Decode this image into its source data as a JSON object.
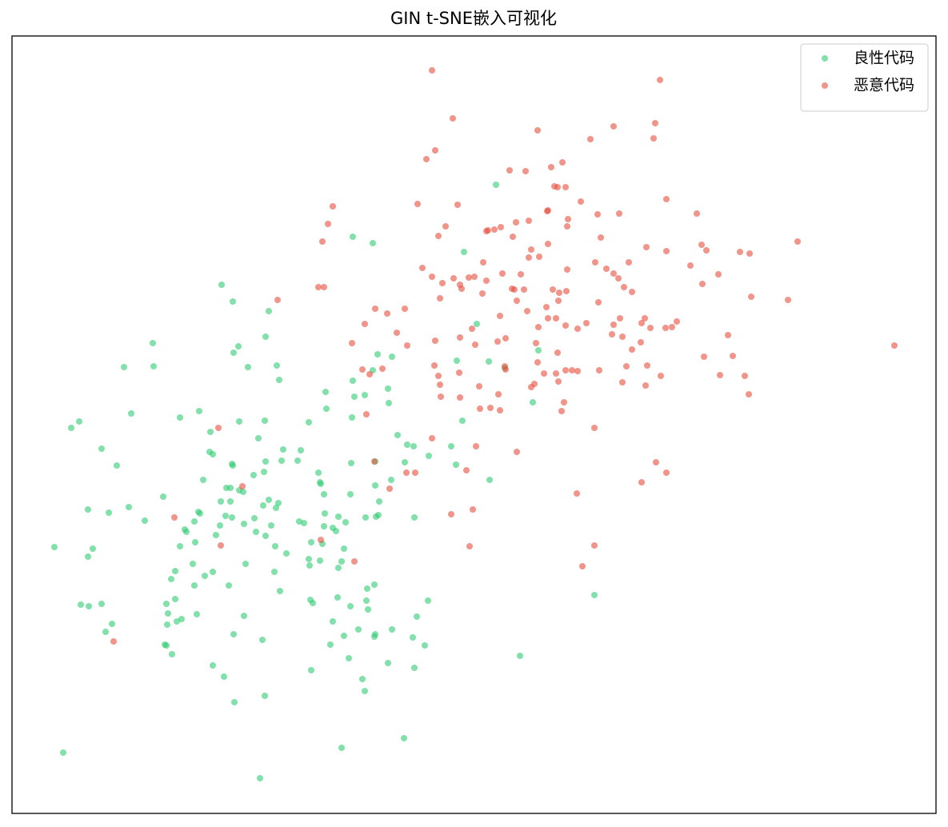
{
  "chart_data": {
    "type": "scatter",
    "title": "GIN t-SNE嵌入可视化",
    "xlim": [
      15,
      1170
    ],
    "ylim": [
      1017,
      45
    ],
    "legend": "upper right",
    "alpha": 0.6,
    "series": [
      {
        "name": "良性代码",
        "color": "#2ecc71",
        "x": [
          620,
          441,
          466,
          580,
          277,
          291,
          336,
          332,
          298,
          292,
          191,
          155,
          192,
          310,
          346,
          349,
          472,
          490,
          466,
          441,
          407,
          443,
          456,
          485,
          486,
          408,
          440,
          164,
          225,
          249,
          299,
          331,
          386,
          99,
          89,
          263,
          323,
          497,
          509,
          517,
          564,
          578,
          571,
          611,
          596,
          673,
          666,
          631,
          127,
          146,
          262,
          266,
          354,
          376,
          332,
          352,
          372,
          290,
          291,
          439,
          469,
          506,
          536,
          570,
          612,
          254,
          317,
          330,
          398,
          400,
          401,
          469,
          489,
          204,
          283,
          288,
          299,
          304,
          405,
          438,
          474,
          110,
          136,
          161,
          181,
          248,
          276,
          288,
          250,
          282,
          290,
          336,
          348,
          345,
          329,
          318,
          339,
          374,
          380,
          406,
          423,
          432,
          457,
          470,
          473,
          518,
          243,
          275,
          305,
          231,
          233,
          270,
          320,
          332,
          405,
          416,
          420,
          68,
          116,
          110,
          225,
          244,
          344,
          358,
          389,
          403,
          430,
          386,
          400,
          387,
          423,
          427,
          307,
          343,
          241,
          219,
          214,
          256,
          266,
          286,
          243,
          350,
          468,
          459,
          422,
          388,
          391,
          458,
          535,
          743,
          101,
          111,
          127,
          208,
          219,
          210,
          227,
          221,
          209,
          246,
          305,
          438,
          460,
          140,
          132,
          416,
          448,
          469,
          468,
          490,
          521,
          292,
          328,
          430,
          413,
          516,
          531,
          206,
          208,
          215,
          436,
          266,
          389,
          453,
          485,
          518,
          650,
          280,
          456,
          293,
          331,
          505,
          427,
          79,
          325
        ],
        "values": [
          231,
          296,
          304,
          315,
          356,
          377,
          389,
          421,
          433,
          441,
          429,
          459,
          458,
          459,
          457,
          475,
          443,
          446,
          463,
          476,
          490,
          496,
          494,
          486,
          504,
          511,
          522,
          517,
          522,
          514,
          527,
          526,
          528,
          527,
          535,
          540,
          548,
          544,
          556,
          558,
          558,
          526,
          451,
          452,
          405,
          438,
          503,
          460,
          561,
          582,
          565,
          568,
          562,
          563,
          577,
          576,
          576,
          580,
          582,
          579,
          577,
          578,
          570,
          581,
          600,
          600,
          594,
          590,
          591,
          603,
          605,
          607,
          600,
          621,
          610,
          610,
          613,
          615,
          618,
          618,
          627,
          637,
          641,
          634,
          651,
          640,
          627,
          627,
          642,
          645,
          647,
          625,
          629,
          635,
          632,
          648,
          657,
          652,
          654,
          642,
          646,
          653,
          647,
          646,
          644,
          647,
          652,
          657,
          655,
          662,
          665,
          669,
          665,
          670,
          658,
          660,
          664,
          684,
          686,
          696,
          683,
          678,
          683,
          692,
          678,
          680,
          686,
          699,
          701,
          707,
          710,
          702,
          705,
          715,
          705,
          714,
          724,
          720,
          715,
          732,
          732,
          739,
          731,
          736,
          747,
          750,
          754,
          751,
          751,
          744,
          756,
          758,
          755,
          755,
          749,
          767,
          774,
          777,
          781,
          768,
          770,
          758,
          762,
          780,
          790,
          777,
          787,
          793,
          796,
          787,
          771,
          793,
          800,
          795,
          806,
          797,
          807,
          806,
          807,
          818,
          823,
          832,
          838,
          849,
          829,
          835,
          820,
          846,
          864,
          878,
          870,
          923,
          935,
          941,
          973
        ]
      },
      {
        "name": "恶意代码",
        "color": "#e74c3c",
        "x": [
          540,
          825,
          566,
          672,
          819,
          767,
          738,
          817,
          544,
          533,
          637,
          657,
          703,
          689,
          697,
          707,
          726,
          693,
          833,
          522,
          572,
          416,
          410,
          403,
          548,
          557,
          608,
          610,
          618,
          626,
          645,
          661,
          685,
          684,
          710,
          709,
          747,
          774,
          871,
          641,
          664,
          685,
          751,
          808,
          833,
          877,
          883,
          925,
          937,
          997,
          528,
          540,
          553,
          567,
          575,
          586,
          593,
          604,
          608,
          628,
          651,
          661,
          674,
          709,
          744,
          758,
          767,
          773,
          786,
          863,
          898,
          878,
          550,
          577,
          603,
          640,
          643,
          655,
          691,
          699,
          708,
          780,
          790,
          748,
          939,
          985,
          398,
          405,
          347,
          469,
          484,
          506,
          456,
          496,
          509,
          440,
          575,
          590,
          544,
          625,
          646,
          659,
          683,
          698,
          685,
          695,
          707,
          722,
          733,
          767,
          775,
          802,
          806,
          813,
          832,
          840,
          846,
          910,
          594,
          622,
          632,
          673,
          670,
          697,
          765,
          778,
          790,
          801,
          880,
          916,
          1118,
          462,
          453,
          478,
          548,
          543,
          574,
          631,
          632,
          672,
          680,
          695,
          707,
          715,
          722,
          749,
          783,
          809,
          826,
          900,
          931,
          664,
          668,
          698,
          551,
          575,
          599,
          550,
          623,
          613,
          600,
          625,
          705,
          702,
          778,
          807,
          936,
          458,
          273,
          743,
          540,
          595,
          646,
          468,
          508,
          519,
          583,
          820,
          833,
          802,
          487,
          303,
          721,
          564,
          591,
          218,
          401,
          276,
          587,
          743,
          443,
          728,
          142
        ],
        "values": [
          88,
          100,
          148,
          163,
          154,
          158,
          174,
          173,
          188,
          199,
          213,
          214,
          203,
          209,
          234,
          234,
          252,
          233,
          249,
          255,
          256,
          258,
          280,
          302,
          295,
          283,
          289,
          288,
          287,
          284,
          278,
          276,
          263,
          264,
          274,
          283,
          268,
          267,
          267,
          296,
          312,
          305,
          297,
          309,
          314,
          306,
          313,
          315,
          317,
          302,
          335,
          346,
          354,
          348,
          356,
          347,
          346,
          328,
          351,
          342,
          343,
          322,
          321,
          337,
          328,
          336,
          342,
          348,
          328,
          332,
          343,
          355,
          373,
          361,
          367,
          361,
          362,
          362,
          362,
          366,
          364,
          359,
          365,
          378,
          371,
          375,
          359,
          359,
          375,
          386,
          392,
          386,
          405,
          416,
          432,
          429,
          422,
          411,
          426,
          395,
          376,
          389,
          384,
          376,
          398,
          398,
          407,
          411,
          404,
          406,
          398,
          404,
          398,
          410,
          410,
          409,
          402,
          419,
          431,
          427,
          423,
          409,
          429,
          441,
          418,
          421,
          437,
          428,
          446,
          445,
          432,
          468,
          462,
          461,
          470,
          457,
          466,
          458,
          462,
          453,
          467,
          467,
          463,
          463,
          464,
          463,
          458,
          457,
          470,
          469,
          470,
          484,
          480,
          477,
          496,
          497,
          483,
          481,
          493,
          510,
          511,
          513,
          503,
          514,
          478,
          482,
          493,
          518,
          535,
          535,
          548,
          558,
          565,
          577,
          591,
          591,
          588,
          578,
          591,
          603,
          611,
          608,
          617,
          643,
          637,
          647,
          675,
          682,
          683,
          682,
          702,
          708,
          802
        ]
      }
    ]
  }
}
